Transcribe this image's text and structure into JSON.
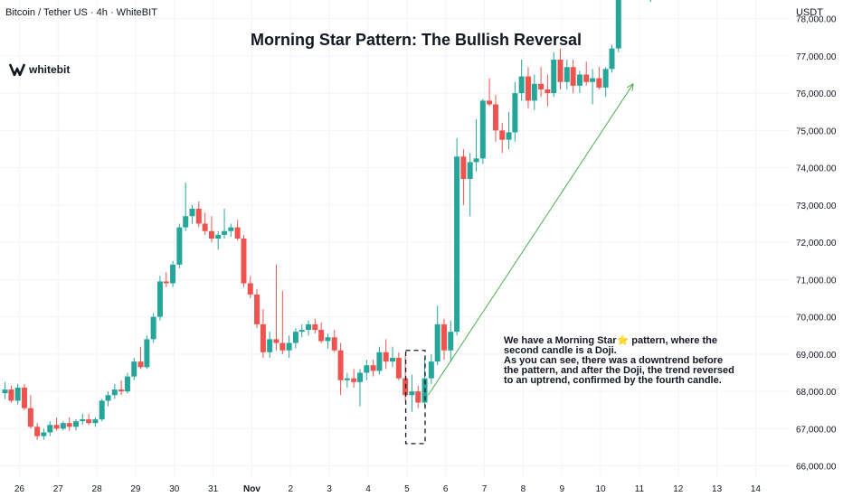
{
  "header": {
    "symbol": "Bitcoin / Tether US · 4h · WhiteBIT",
    "currency": "USDT",
    "brand": "whitebit"
  },
  "chart_data": {
    "type": "candlestick",
    "title": "Morning Star Pattern: The Bullish Reversal",
    "x_tick_labels": [
      "26",
      "27",
      "28",
      "29",
      "30",
      "31",
      "Nov",
      "2",
      "3",
      "4",
      "5",
      "6",
      "7",
      "8",
      "9",
      "10",
      "11",
      "12",
      "13",
      "14"
    ],
    "x_ticks": [
      1,
      2,
      3,
      4,
      5,
      6,
      7,
      8,
      9,
      10,
      11,
      12,
      13,
      14,
      15,
      16,
      17,
      18,
      19,
      20
    ],
    "y_ticks": [
      66000,
      67000,
      68000,
      69000,
      70000,
      71000,
      72000,
      73000,
      74000,
      75000,
      76000,
      77000,
      78000
    ],
    "y_tick_labels": [
      "66,000.00",
      "67,000.00",
      "68,000.00",
      "69,000.00",
      "70,000.00",
      "71,000.00",
      "72,000.00",
      "73,000.00",
      "74,000.00",
      "75,000.00",
      "76,000.00",
      "77,000.00",
      "78,000.00"
    ],
    "ylim": [
      65700,
      78500
    ],
    "xlim": [
      0.5,
      20.9
    ],
    "grid": true,
    "colors": {
      "up": "#26a69a",
      "down": "#ef5350",
      "grid": "#f0f3fa",
      "arrow": "#4caf50",
      "axis_text": "#131722"
    },
    "candles": [
      {
        "x": 0.63,
        "o": 67950,
        "h": 68250,
        "l": 67800,
        "c": 68050
      },
      {
        "x": 0.79,
        "o": 68050,
        "h": 68150,
        "l": 67700,
        "c": 67750
      },
      {
        "x": 0.96,
        "o": 67750,
        "h": 68200,
        "l": 67650,
        "c": 68100
      },
      {
        "x": 1.13,
        "o": 68100,
        "h": 68200,
        "l": 67500,
        "c": 67550
      },
      {
        "x": 1.29,
        "o": 67550,
        "h": 67900,
        "l": 67000,
        "c": 67050
      },
      {
        "x": 1.46,
        "o": 67050,
        "h": 67150,
        "l": 66700,
        "c": 66800
      },
      {
        "x": 1.63,
        "o": 66800,
        "h": 67000,
        "l": 66700,
        "c": 66900
      },
      {
        "x": 1.79,
        "o": 66900,
        "h": 67200,
        "l": 66800,
        "c": 67100
      },
      {
        "x": 1.96,
        "o": 67100,
        "h": 67300,
        "l": 66950,
        "c": 67000
      },
      {
        "x": 2.13,
        "o": 67000,
        "h": 67200,
        "l": 66950,
        "c": 67150
      },
      {
        "x": 2.29,
        "o": 67150,
        "h": 67300,
        "l": 66950,
        "c": 67050
      },
      {
        "x": 2.46,
        "o": 67050,
        "h": 67250,
        "l": 66950,
        "c": 67200
      },
      {
        "x": 2.63,
        "o": 67200,
        "h": 67400,
        "l": 67100,
        "c": 67250
      },
      {
        "x": 2.79,
        "o": 67250,
        "h": 67400,
        "l": 67100,
        "c": 67150
      },
      {
        "x": 2.96,
        "o": 67150,
        "h": 67300,
        "l": 67050,
        "c": 67250
      },
      {
        "x": 3.13,
        "o": 67250,
        "h": 67800,
        "l": 67200,
        "c": 67750
      },
      {
        "x": 3.29,
        "o": 67750,
        "h": 68000,
        "l": 67600,
        "c": 67900
      },
      {
        "x": 3.46,
        "o": 67900,
        "h": 68200,
        "l": 67800,
        "c": 68050
      },
      {
        "x": 3.63,
        "o": 68050,
        "h": 68300,
        "l": 67900,
        "c": 68000
      },
      {
        "x": 3.79,
        "o": 68000,
        "h": 68500,
        "l": 67950,
        "c": 68400
      },
      {
        "x": 3.96,
        "o": 68400,
        "h": 68900,
        "l": 68300,
        "c": 68800
      },
      {
        "x": 4.13,
        "o": 68800,
        "h": 69200,
        "l": 68600,
        "c": 68650
      },
      {
        "x": 4.29,
        "o": 68650,
        "h": 69500,
        "l": 68600,
        "c": 69400
      },
      {
        "x": 4.46,
        "o": 69400,
        "h": 70100,
        "l": 69300,
        "c": 70000
      },
      {
        "x": 4.63,
        "o": 70000,
        "h": 71100,
        "l": 69900,
        "c": 70950
      },
      {
        "x": 4.79,
        "o": 70950,
        "h": 71200,
        "l": 70800,
        "c": 70900
      },
      {
        "x": 4.96,
        "o": 70900,
        "h": 71500,
        "l": 70800,
        "c": 71400
      },
      {
        "x": 5.13,
        "o": 71400,
        "h": 72500,
        "l": 71300,
        "c": 72400
      },
      {
        "x": 5.29,
        "o": 72400,
        "h": 73600,
        "l": 72300,
        "c": 72700
      },
      {
        "x": 5.46,
        "o": 72700,
        "h": 73000,
        "l": 72500,
        "c": 72900
      },
      {
        "x": 5.63,
        "o": 72900,
        "h": 73100,
        "l": 72400,
        "c": 72500
      },
      {
        "x": 5.79,
        "o": 72500,
        "h": 72800,
        "l": 72200,
        "c": 72300
      },
      {
        "x": 5.96,
        "o": 72300,
        "h": 72700,
        "l": 72000,
        "c": 72100
      },
      {
        "x": 6.13,
        "o": 72100,
        "h": 72300,
        "l": 71800,
        "c": 72200
      },
      {
        "x": 6.29,
        "o": 72200,
        "h": 72900,
        "l": 72100,
        "c": 72300
      },
      {
        "x": 6.46,
        "o": 72300,
        "h": 72500,
        "l": 72150,
        "c": 72400
      },
      {
        "x": 6.63,
        "o": 72400,
        "h": 72600,
        "l": 72050,
        "c": 72100
      },
      {
        "x": 6.79,
        "o": 72100,
        "h": 72200,
        "l": 70800,
        "c": 70900
      },
      {
        "x": 6.96,
        "o": 70900,
        "h": 71100,
        "l": 70500,
        "c": 70600
      },
      {
        "x": 7.13,
        "o": 70600,
        "h": 70750,
        "l": 69700,
        "c": 69800
      },
      {
        "x": 7.29,
        "o": 69800,
        "h": 70200,
        "l": 68900,
        "c": 69050
      },
      {
        "x": 7.46,
        "o": 69050,
        "h": 69600,
        "l": 68900,
        "c": 69400
      },
      {
        "x": 7.63,
        "o": 69400,
        "h": 71400,
        "l": 69100,
        "c": 69300
      },
      {
        "x": 7.79,
        "o": 69300,
        "h": 70700,
        "l": 69000,
        "c": 69100
      },
      {
        "x": 7.96,
        "o": 69100,
        "h": 69500,
        "l": 68900,
        "c": 69300
      },
      {
        "x": 8.13,
        "o": 69300,
        "h": 69700,
        "l": 69150,
        "c": 69600
      },
      {
        "x": 8.29,
        "o": 69600,
        "h": 69800,
        "l": 69450,
        "c": 69650
      },
      {
        "x": 8.46,
        "o": 69650,
        "h": 69900,
        "l": 69500,
        "c": 69800
      },
      {
        "x": 8.63,
        "o": 69800,
        "h": 69950,
        "l": 69550,
        "c": 69650
      },
      {
        "x": 8.79,
        "o": 69650,
        "h": 69850,
        "l": 69300,
        "c": 69350
      },
      {
        "x": 8.96,
        "o": 69350,
        "h": 69550,
        "l": 69150,
        "c": 69450
      },
      {
        "x": 9.13,
        "o": 69450,
        "h": 69650,
        "l": 69050,
        "c": 69100
      },
      {
        "x": 9.29,
        "o": 69100,
        "h": 69300,
        "l": 67900,
        "c": 68300
      },
      {
        "x": 9.46,
        "o": 68300,
        "h": 68500,
        "l": 68100,
        "c": 68350
      },
      {
        "x": 9.63,
        "o": 68350,
        "h": 68600,
        "l": 68100,
        "c": 68250
      },
      {
        "x": 9.79,
        "o": 68250,
        "h": 68600,
        "l": 67600,
        "c": 68500
      },
      {
        "x": 9.96,
        "o": 68500,
        "h": 68850,
        "l": 68300,
        "c": 68700
      },
      {
        "x": 10.13,
        "o": 68700,
        "h": 68850,
        "l": 68400,
        "c": 68550
      },
      {
        "x": 10.29,
        "o": 68550,
        "h": 69200,
        "l": 68450,
        "c": 69050
      },
      {
        "x": 10.46,
        "o": 69050,
        "h": 69400,
        "l": 68600,
        "c": 68800
      },
      {
        "x": 10.63,
        "o": 68800,
        "h": 69200,
        "l": 68650,
        "c": 68900
      },
      {
        "x": 10.79,
        "o": 68900,
        "h": 69050,
        "l": 68300,
        "c": 68350
      },
      {
        "x": 10.96,
        "o": 68350,
        "h": 68950,
        "l": 67750,
        "c": 67900
      },
      {
        "x": 11.13,
        "o": 67900,
        "h": 68450,
        "l": 67450,
        "c": 68000
      },
      {
        "x": 11.29,
        "o": 68000,
        "h": 68150,
        "l": 67550,
        "c": 67700
      },
      {
        "x": 11.46,
        "o": 67700,
        "h": 68900,
        "l": 67600,
        "c": 68350
      },
      {
        "x": 11.63,
        "o": 68350,
        "h": 69000,
        "l": 68200,
        "c": 68800
      },
      {
        "x": 11.79,
        "o": 68800,
        "h": 70300,
        "l": 68700,
        "c": 69800
      },
      {
        "x": 11.96,
        "o": 69800,
        "h": 69950,
        "l": 68850,
        "c": 69100
      },
      {
        "x": 12.13,
        "o": 69100,
        "h": 69900,
        "l": 68800,
        "c": 69600
      },
      {
        "x": 12.29,
        "o": 69600,
        "h": 74800,
        "l": 69500,
        "c": 74300
      },
      {
        "x": 12.46,
        "o": 74300,
        "h": 74500,
        "l": 73000,
        "c": 73700
      },
      {
        "x": 12.63,
        "o": 73700,
        "h": 74400,
        "l": 72700,
        "c": 74150
      },
      {
        "x": 12.79,
        "o": 74150,
        "h": 75300,
        "l": 73900,
        "c": 74250
      },
      {
        "x": 12.96,
        "o": 74250,
        "h": 75850,
        "l": 74100,
        "c": 75800
      },
      {
        "x": 13.13,
        "o": 75800,
        "h": 76400,
        "l": 75650,
        "c": 75700
      },
      {
        "x": 13.29,
        "o": 75700,
        "h": 75950,
        "l": 74700,
        "c": 75000
      },
      {
        "x": 13.46,
        "o": 75000,
        "h": 75200,
        "l": 74400,
        "c": 74750
      },
      {
        "x": 13.63,
        "o": 74750,
        "h": 75500,
        "l": 74500,
        "c": 74950
      },
      {
        "x": 13.79,
        "o": 74950,
        "h": 76300,
        "l": 74700,
        "c": 76000
      },
      {
        "x": 13.96,
        "o": 76000,
        "h": 76900,
        "l": 75800,
        "c": 76450
      },
      {
        "x": 14.13,
        "o": 76450,
        "h": 76700,
        "l": 75600,
        "c": 75800
      },
      {
        "x": 14.29,
        "o": 75800,
        "h": 76500,
        "l": 75550,
        "c": 76250
      },
      {
        "x": 14.46,
        "o": 76250,
        "h": 76700,
        "l": 75900,
        "c": 76100
      },
      {
        "x": 14.63,
        "o": 76100,
        "h": 76500,
        "l": 75650,
        "c": 76000
      },
      {
        "x": 14.79,
        "o": 76000,
        "h": 77100,
        "l": 75900,
        "c": 76900
      },
      {
        "x": 14.96,
        "o": 76900,
        "h": 77200,
        "l": 76100,
        "c": 76300
      },
      {
        "x": 15.13,
        "o": 76300,
        "h": 76900,
        "l": 76100,
        "c": 76700
      },
      {
        "x": 15.29,
        "o": 76700,
        "h": 76900,
        "l": 76000,
        "c": 76200
      },
      {
        "x": 15.46,
        "o": 76200,
        "h": 76600,
        "l": 76000,
        "c": 76500
      },
      {
        "x": 15.63,
        "o": 76500,
        "h": 76850,
        "l": 76200,
        "c": 76300
      },
      {
        "x": 15.79,
        "o": 76300,
        "h": 76650,
        "l": 75700,
        "c": 76400
      },
      {
        "x": 15.96,
        "o": 76400,
        "h": 76700,
        "l": 76100,
        "c": 76150
      },
      {
        "x": 16.13,
        "o": 76150,
        "h": 76700,
        "l": 75900,
        "c": 76650
      },
      {
        "x": 16.29,
        "o": 76650,
        "h": 77300,
        "l": 76550,
        "c": 77200
      },
      {
        "x": 16.46,
        "o": 77200,
        "h": 78600,
        "l": 77100,
        "c": 78600
      },
      {
        "x": 17.29,
        "o": 78550,
        "h": 78600,
        "l": 78450,
        "c": 78550
      }
    ],
    "highlight_box": {
      "x_from": 10.97,
      "x_to": 11.47,
      "y_from": 66600,
      "y_to": 69100
    },
    "trend_arrow": {
      "from": {
        "x": 11.55,
        "y": 67900
      },
      "to": {
        "x": 16.84,
        "y": 76250
      }
    },
    "annotation": {
      "line1": "We have a Morning Star⭐ pattern, where the second candle is a Doji.",
      "line2": "As you can see, there was a downtrend before the pattern, and after the Doji, the trend reversed to an uptrend, confirmed by the fourth candle."
    }
  }
}
